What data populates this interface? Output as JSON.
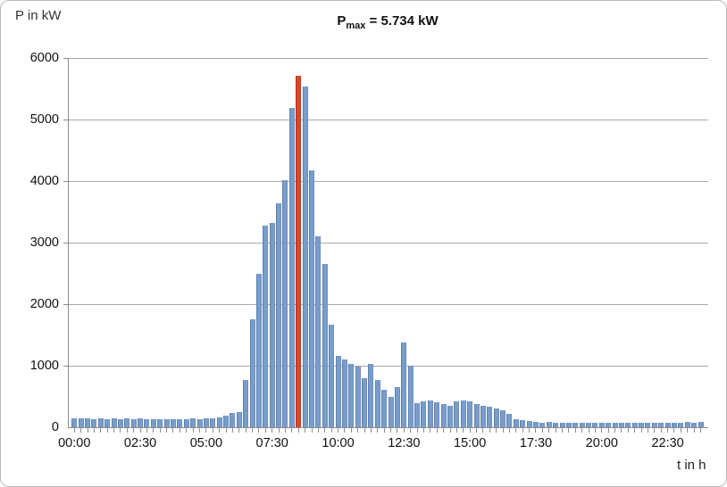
{
  "figure": {
    "y_axis_title": "P in kW",
    "x_axis_title": "t in h",
    "title": {
      "base": "P",
      "sub": "max",
      "rest": " = 5.734 kW"
    }
  },
  "colors": {
    "bar": "#7a9cc9",
    "bar_edge": "#5d81b4",
    "peak_line": "#d8472a",
    "gridline": "#a8a8a8",
    "axis": "#8c8c8c",
    "text": "#111111",
    "figure_border": "#b9b9b9"
  },
  "chart_data": {
    "type": "bar",
    "title": "Pmax = 5.734 kW",
    "xlabel": "t in h",
    "ylabel": "P in kW",
    "ylim": [
      0,
      6000
    ],
    "grid": true,
    "y_ticks": [
      0,
      1000,
      2000,
      3000,
      4000,
      5000,
      6000
    ],
    "x_tick_labels": [
      "00:00",
      "02:30",
      "05:00",
      "07:30",
      "10:00",
      "12:30",
      "15:00",
      "17:30",
      "20:00",
      "22:30"
    ],
    "x_tick_every": 10,
    "interval_minutes": 15,
    "peak": {
      "time": "08:30",
      "value": 5734,
      "label": "Pmax = 5.734 kW",
      "marker_color": "#d8472a"
    },
    "x": [
      "00:00",
      "00:15",
      "00:30",
      "00:45",
      "01:00",
      "01:15",
      "01:30",
      "01:45",
      "02:00",
      "02:15",
      "02:30",
      "02:45",
      "03:00",
      "03:15",
      "03:30",
      "03:45",
      "04:00",
      "04:15",
      "04:30",
      "04:45",
      "05:00",
      "05:15",
      "05:30",
      "05:45",
      "06:00",
      "06:15",
      "06:30",
      "06:45",
      "07:00",
      "07:15",
      "07:30",
      "07:45",
      "08:00",
      "08:15",
      "08:30",
      "08:45",
      "09:00",
      "09:15",
      "09:30",
      "09:45",
      "10:00",
      "10:15",
      "10:30",
      "10:45",
      "11:00",
      "11:15",
      "11:30",
      "11:45",
      "12:00",
      "12:15",
      "12:30",
      "12:45",
      "13:00",
      "13:15",
      "13:30",
      "13:45",
      "14:00",
      "14:15",
      "14:30",
      "14:45",
      "15:00",
      "15:15",
      "15:30",
      "15:45",
      "16:00",
      "16:15",
      "16:30",
      "16:45",
      "17:00",
      "17:15",
      "17:30",
      "17:45",
      "18:00",
      "18:15",
      "18:30",
      "18:45",
      "19:00",
      "19:15",
      "19:30",
      "19:45",
      "20:00",
      "20:15",
      "20:30",
      "20:45",
      "21:00",
      "21:15",
      "21:30",
      "21:45",
      "22:00",
      "22:15",
      "22:30",
      "22:45",
      "23:00",
      "23:15",
      "23:30",
      "23:45"
    ],
    "values": [
      170,
      175,
      170,
      165,
      170,
      165,
      170,
      165,
      170,
      165,
      170,
      160,
      160,
      165,
      160,
      165,
      160,
      165,
      170,
      165,
      170,
      180,
      195,
      220,
      260,
      270,
      800,
      1780,
      2520,
      3310,
      3350,
      3660,
      4050,
      5220,
      5734,
      5570,
      4210,
      3130,
      2680,
      1700,
      1190,
      1130,
      1060,
      1010,
      820,
      1060,
      800,
      640,
      520,
      680,
      1400,
      1030,
      420,
      445,
      460,
      440,
      400,
      370,
      445,
      465,
      445,
      410,
      380,
      360,
      330,
      300,
      250,
      160,
      150,
      125,
      110,
      105,
      110,
      100,
      95,
      95,
      95,
      100,
      100,
      95,
      100,
      95,
      100,
      95,
      100,
      95,
      100,
      95,
      100,
      95,
      100,
      105,
      100,
      110,
      105,
      110
    ]
  }
}
